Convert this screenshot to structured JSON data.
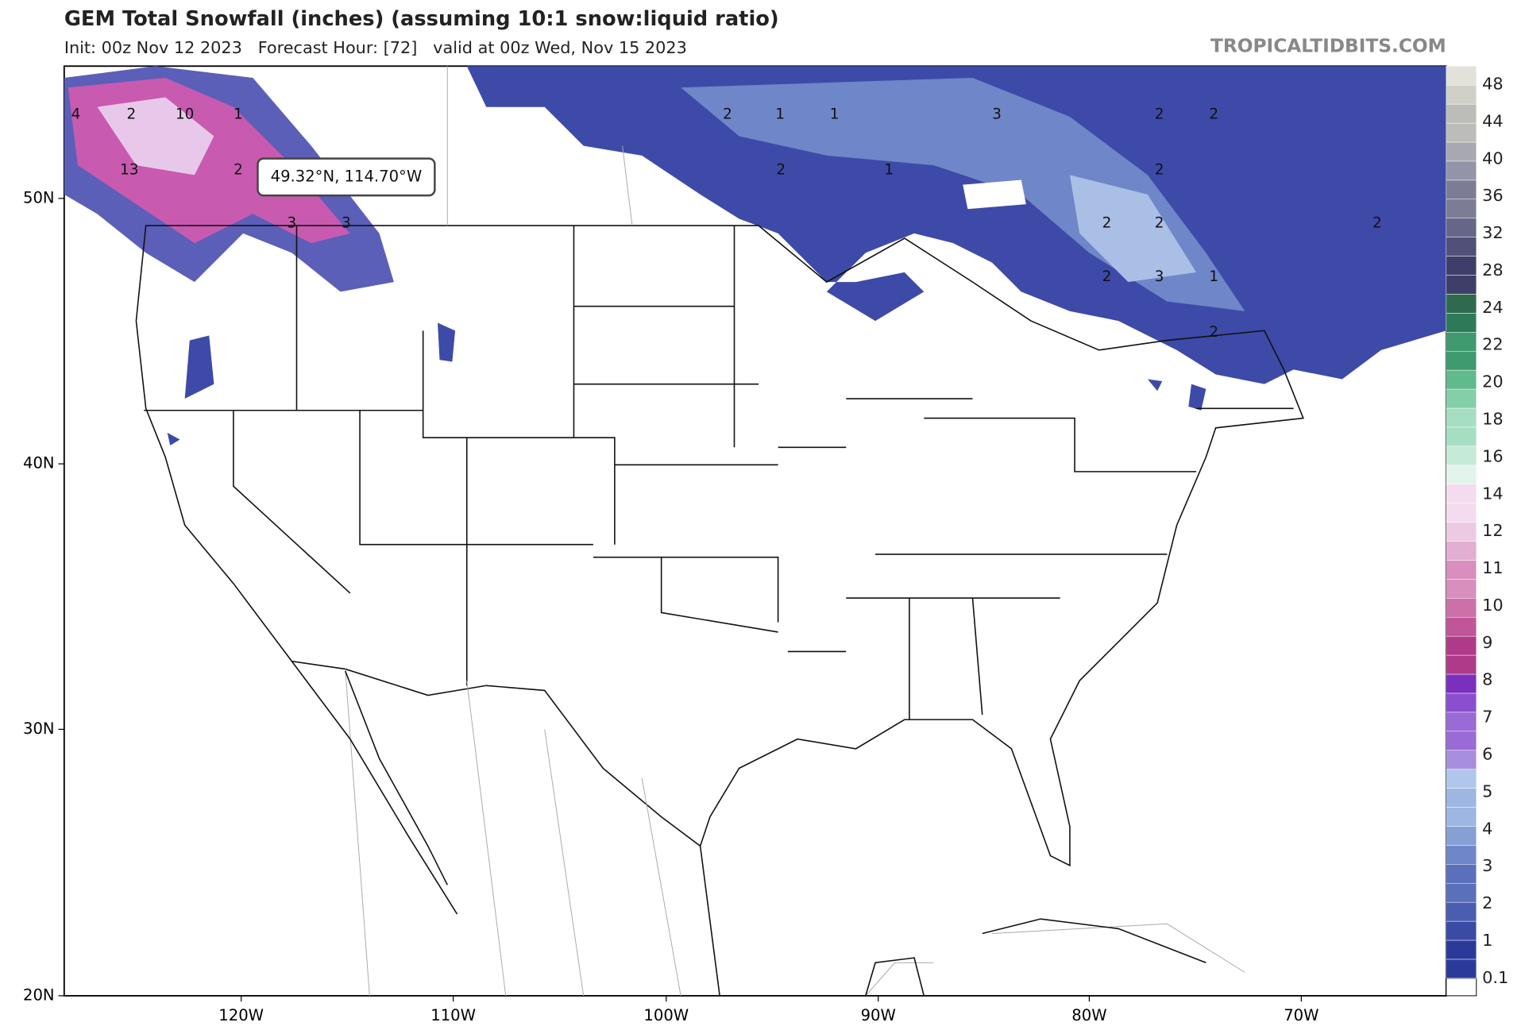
{
  "header": {
    "title": "GEM Total Snowfall (inches) (assuming 10:1 snow:liquid ratio)",
    "subtitle": "Init: 00z Nov 12 2023   Forecast Hour: [72]   valid at 00z Wed, Nov 15 2023",
    "brand": "TROPICALTIDBITS.COM"
  },
  "map": {
    "lon_labels": [
      "120W",
      "110W",
      "100W",
      "90W",
      "80W",
      "70W"
    ],
    "lat_labels": [
      "50N",
      "40N",
      "30N",
      "20N"
    ],
    "tooltip": "49.32°N, 114.70°W",
    "contour_labels": [
      "4",
      "2",
      "10",
      "1",
      "13",
      "2",
      "3",
      "3",
      "2",
      "1",
      "1",
      "3",
      "2",
      "2",
      "2",
      "1",
      "2",
      "2",
      "2",
      "2",
      "2",
      "3",
      "1",
      "2"
    ]
  },
  "colorbar": {
    "labels": [
      "0.1",
      "1",
      "2",
      "3",
      "4",
      "5",
      "6",
      "7",
      "8",
      "9",
      "10",
      "11",
      "12",
      "14",
      "16",
      "18",
      "20",
      "22",
      "24",
      "28",
      "32",
      "36",
      "40",
      "44",
      "48"
    ]
  }
}
